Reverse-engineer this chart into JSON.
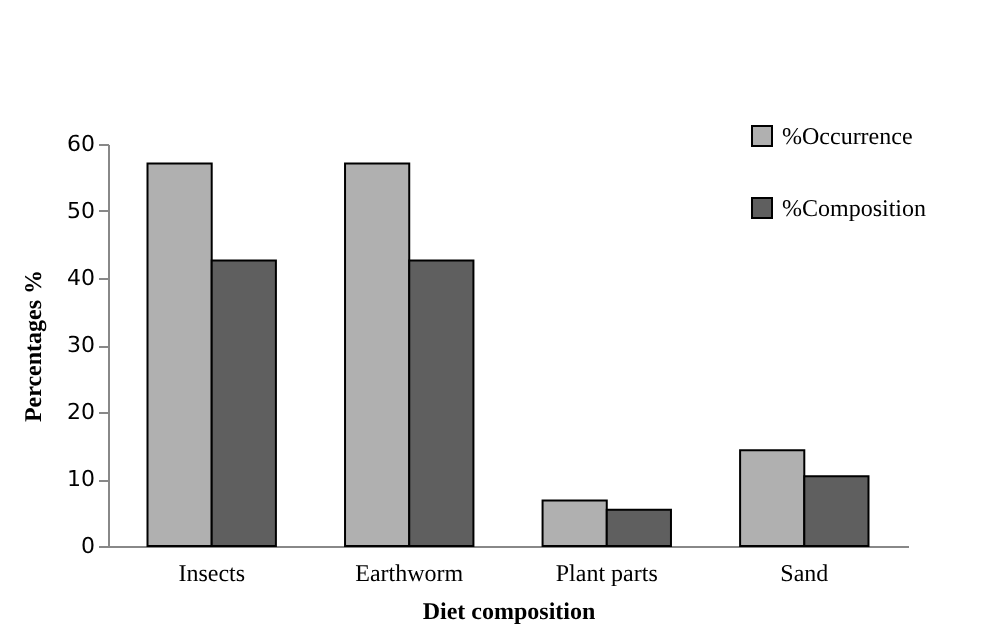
{
  "chart_data": {
    "type": "bar",
    "xlabel": "Diet composition",
    "ylabel": "Percentages %",
    "categories": [
      "Insects",
      "Earthworm",
      "Plant parts",
      "Sand"
    ],
    "series": [
      {
        "name": "%Occurrence",
        "color": "#b0b0b0",
        "values": [
          57.1,
          57.1,
          6.8,
          14.3
        ]
      },
      {
        "name": "%Composition",
        "color": "#5f5f5f",
        "values": [
          42.6,
          42.6,
          5.4,
          10.4
        ]
      }
    ],
    "ylim": [
      0,
      60
    ],
    "yticks": [
      0,
      10,
      20,
      30,
      40,
      50,
      60
    ],
    "grid": false,
    "legend": "top right"
  }
}
